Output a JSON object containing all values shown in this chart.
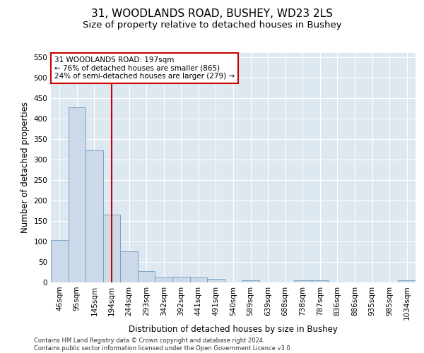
{
  "title_line1": "31, WOODLANDS ROAD, BUSHEY, WD23 2LS",
  "title_line2": "Size of property relative to detached houses in Bushey",
  "xlabel": "Distribution of detached houses by size in Bushey",
  "ylabel": "Number of detached properties",
  "footer": "Contains HM Land Registry data © Crown copyright and database right 2024.\nContains public sector information licensed under the Open Government Licence v3.0.",
  "categories": [
    "46sqm",
    "95sqm",
    "145sqm",
    "194sqm",
    "244sqm",
    "293sqm",
    "342sqm",
    "392sqm",
    "441sqm",
    "491sqm",
    "540sqm",
    "589sqm",
    "639sqm",
    "688sqm",
    "738sqm",
    "787sqm",
    "836sqm",
    "886sqm",
    "935sqm",
    "985sqm",
    "1034sqm"
  ],
  "values": [
    104,
    428,
    322,
    165,
    76,
    28,
    12,
    14,
    12,
    8,
    0,
    5,
    0,
    0,
    6,
    5,
    0,
    0,
    0,
    0,
    5
  ],
  "bar_color": "#ccd9e8",
  "bar_edge_color": "#6a9abf",
  "vline_x": 3,
  "vline_color": "#cc0000",
  "annotation_text": "31 WOODLANDS ROAD: 197sqm\n← 76% of detached houses are smaller (865)\n24% of semi-detached houses are larger (279) →",
  "annotation_box_color": "#ffffff",
  "annotation_box_edgecolor": "#cc0000",
  "ylim": [
    0,
    560
  ],
  "yticks": [
    0,
    50,
    100,
    150,
    200,
    250,
    300,
    350,
    400,
    450,
    500,
    550
  ],
  "fig_background_color": "#ffffff",
  "plot_background_color": "#dde8f0",
  "grid_color": "#ffffff",
  "title_fontsize": 11,
  "subtitle_fontsize": 9.5,
  "axis_label_fontsize": 8.5,
  "tick_fontsize": 7.5,
  "footer_fontsize": 6
}
